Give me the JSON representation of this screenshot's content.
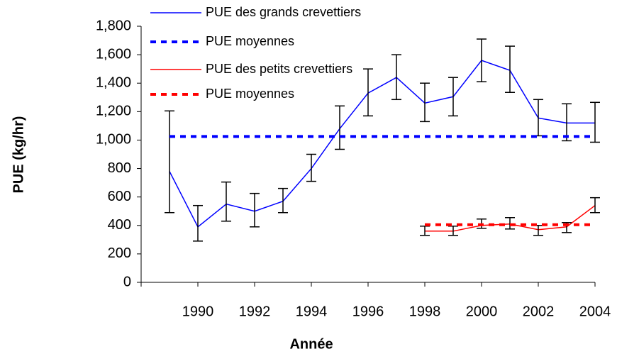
{
  "chart_data": {
    "type": "line",
    "x_label": "Année",
    "y_label": "PUE (kg/hr)",
    "xlim": [
      1988,
      2004
    ],
    "xticks": [
      1990,
      1992,
      1994,
      1996,
      1998,
      2000,
      2002,
      2004
    ],
    "ylim": [
      0,
      1800
    ],
    "yticks": [
      0,
      200,
      400,
      600,
      800,
      {
        "value": 1000,
        "label": "1,000"
      },
      {
        "value": 1200,
        "label": "1,200"
      },
      {
        "value": 1400,
        "label": "1,400"
      },
      {
        "value": 1600,
        "label": "1,600"
      },
      {
        "value": 1800,
        "label": "1,800"
      }
    ],
    "series": [
      {
        "name": "PUE des grands crevettiers",
        "color": "#0000ff",
        "dashed": false,
        "x": [
          1989,
          1990,
          1991,
          1992,
          1993,
          1994,
          1995,
          1996,
          1997,
          1998,
          1999,
          2000,
          2001,
          2002,
          2003,
          2004
        ],
        "values": [
          780,
          390,
          550,
          500,
          570,
          800,
          1080,
          1330,
          1440,
          1260,
          1305,
          1560,
          1490,
          1155,
          1120,
          1120
        ],
        "error_low": [
          490,
          290,
          430,
          390,
          490,
          710,
          935,
          1170,
          1285,
          1130,
          1170,
          1410,
          1335,
          1030,
          995,
          985
        ],
        "error_high": [
          1205,
          540,
          705,
          625,
          660,
          900,
          1240,
          1500,
          1600,
          1400,
          1440,
          1710,
          1660,
          1285,
          1255,
          1265
        ]
      },
      {
        "name": "PUE moyennes",
        "color": "#0000ff",
        "dashed": true,
        "x": [
          1989,
          2004
        ],
        "values": [
          1025,
          1025
        ]
      },
      {
        "name": "PUE des petits crevettiers",
        "color": "#ff0000",
        "dashed": false,
        "x": [
          1998,
          1999,
          2000,
          2001,
          2002,
          2003,
          2004
        ],
        "values": [
          360,
          360,
          400,
          410,
          370,
          390,
          540
        ],
        "error_low": [
          330,
          330,
          380,
          375,
          330,
          350,
          490
        ],
        "error_high": [
          395,
          395,
          445,
          455,
          400,
          420,
          595
        ]
      },
      {
        "name": "PUE moyennes",
        "color": "#ff0000",
        "dashed": true,
        "x": [
          1998,
          2004
        ],
        "values": [
          405,
          405
        ]
      }
    ]
  }
}
